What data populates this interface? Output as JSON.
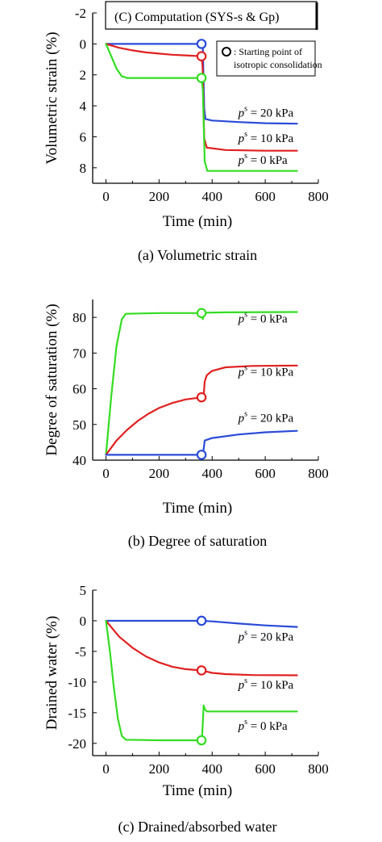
{
  "chart_data": [
    {
      "type": "line",
      "title": "(C) Computation (SYS-s & Gp)",
      "caption": "(a) Volumetric strain",
      "xlabel": "Time (min)",
      "ylabel": "Volumetric strain (%)",
      "xlim": [
        -50,
        800
      ],
      "ylim": [
        -2,
        9
      ],
      "y_inverted": true,
      "x_ticks": [
        "0",
        "200",
        "400",
        "600",
        "800"
      ],
      "x_tick_values": [
        0,
        200,
        400,
        600,
        800
      ],
      "y_ticks": [
        "-2",
        "0",
        "2",
        "4",
        "6",
        "8"
      ],
      "y_tick_values": [
        -2,
        0,
        2,
        4,
        6,
        8
      ],
      "legend": {
        "marker_label_1": ": Starting point of",
        "marker_label_2": "isotropic consolidation",
        "placement": "top-right"
      },
      "series": [
        {
          "label_prefix": "p",
          "label_sup": "s",
          "label_suffix": " = 20 kPa",
          "color": "#2a4bd7",
          "points": [
            [
              0,
              0
            ],
            [
              100,
              0
            ],
            [
              200,
              0
            ],
            [
              300,
              0
            ],
            [
              360,
              0
            ],
            [
              365,
              0.3
            ],
            [
              370,
              4.2
            ],
            [
              375,
              4.85
            ],
            [
              400,
              4.95
            ],
            [
              500,
              5.05
            ],
            [
              600,
              5.12
            ],
            [
              720,
              5.15
            ]
          ],
          "marker": [
            360,
            0
          ],
          "label_anchor": [
            565,
            4.7
          ]
        },
        {
          "label_prefix": "p",
          "label_sup": "s",
          "label_suffix": " = 10 kPa",
          "color": "#e02020",
          "points": [
            [
              0,
              0
            ],
            [
              50,
              0.25
            ],
            [
              100,
              0.42
            ],
            [
              150,
              0.55
            ],
            [
              200,
              0.63
            ],
            [
              250,
              0.7
            ],
            [
              300,
              0.74
            ],
            [
              360,
              0.8
            ],
            [
              364,
              1.5
            ],
            [
              370,
              6.1
            ],
            [
              380,
              6.7
            ],
            [
              450,
              6.85
            ],
            [
              600,
              6.9
            ],
            [
              720,
              6.9
            ]
          ],
          "marker": [
            360,
            0.8
          ],
          "label_anchor": [
            565,
            6.35
          ]
        },
        {
          "label_prefix": "p",
          "label_sup": "s",
          "label_suffix": " = 0 kPa",
          "color": "#33dd22",
          "points": [
            [
              0,
              0
            ],
            [
              20,
              0.8
            ],
            [
              40,
              1.6
            ],
            [
              60,
              2.1
            ],
            [
              80,
              2.2
            ],
            [
              200,
              2.2
            ],
            [
              360,
              2.2
            ],
            [
              365,
              3
            ],
            [
              372,
              7.6
            ],
            [
              382,
              8.2
            ],
            [
              450,
              8.2
            ],
            [
              720,
              8.2
            ]
          ],
          "marker": [
            360,
            2.2
          ],
          "label_anchor": [
            565,
            7.75
          ]
        }
      ]
    },
    {
      "type": "line",
      "caption": "(b) Degree of saturation",
      "xlabel": "Time (min)",
      "ylabel": "Degree of saturation (%)",
      "xlim": [
        -50,
        800
      ],
      "ylim": [
        40,
        85
      ],
      "y_inverted": false,
      "x_ticks": [
        "0",
        "200",
        "400",
        "600",
        "800"
      ],
      "x_tick_values": [
        0,
        200,
        400,
        600,
        800
      ],
      "y_ticks": [
        "40",
        "50",
        "60",
        "70",
        "80"
      ],
      "y_tick_values": [
        40,
        50,
        60,
        70,
        80
      ],
      "series": [
        {
          "label_prefix": "p",
          "label_sup": "s",
          "label_suffix": " = 0 kPa",
          "color": "#33dd22",
          "points": [
            [
              0,
              41.5
            ],
            [
              20,
              58
            ],
            [
              40,
              72
            ],
            [
              60,
              79.5
            ],
            [
              75,
              81
            ],
            [
              200,
              81.2
            ],
            [
              355,
              81.2
            ],
            [
              362,
              81
            ],
            [
              365,
              79.5
            ],
            [
              368,
              81.3
            ],
            [
              450,
              81.4
            ],
            [
              720,
              81.5
            ]
          ],
          "marker": [
            360,
            81.2
          ],
          "label_anchor": [
            565,
            78.5
          ]
        },
        {
          "label_prefix": "p",
          "label_sup": "s",
          "label_suffix": " = 10 kPa",
          "color": "#e02020",
          "points": [
            [
              0,
              41.5
            ],
            [
              40,
              45.5
            ],
            [
              80,
              48.5
            ],
            [
              120,
              51
            ],
            [
              160,
              53
            ],
            [
              200,
              54.6
            ],
            [
              250,
              56
            ],
            [
              300,
              57
            ],
            [
              360,
              57.6
            ],
            [
              368,
              58
            ],
            [
              372,
              62
            ],
            [
              380,
              63.8
            ],
            [
              400,
              65
            ],
            [
              450,
              66
            ],
            [
              550,
              66.4
            ],
            [
              720,
              66.5
            ]
          ],
          "marker": [
            360,
            57.6
          ],
          "label_anchor": [
            565,
            63.6
          ]
        },
        {
          "label_prefix": "p",
          "label_sup": "s",
          "label_suffix": " = 20 kPa",
          "color": "#2a4bd7",
          "points": [
            [
              0,
              41.5
            ],
            [
              100,
              41.5
            ],
            [
              200,
              41.5
            ],
            [
              360,
              41.5
            ],
            [
              368,
              43
            ],
            [
              372,
              45.5
            ],
            [
              400,
              46.2
            ],
            [
              500,
              47.2
            ],
            [
              600,
              47.8
            ],
            [
              720,
              48.2
            ]
          ],
          "marker": [
            360,
            41.5
          ],
          "label_anchor": [
            565,
            50.7
          ]
        }
      ]
    },
    {
      "type": "line",
      "caption": "(c) Drained/absorbed water",
      "xlabel": "Time (min)",
      "ylabel": "Drained water (%)",
      "xlim": [
        -50,
        800
      ],
      "ylim": [
        -22,
        5
      ],
      "y_inverted": false,
      "x_ticks": [
        "0",
        "200",
        "400",
        "600",
        "800"
      ],
      "x_tick_values": [
        0,
        200,
        400,
        600,
        800
      ],
      "y_ticks": [
        "5",
        "0",
        "-5",
        "-10",
        "-15",
        "-20"
      ],
      "y_tick_values": [
        5,
        0,
        -5,
        -10,
        -15,
        -20
      ],
      "series": [
        {
          "label_prefix": "p",
          "label_sup": "s",
          "label_suffix": " = 20 kPa",
          "color": "#2a4bd7",
          "points": [
            [
              0,
              0
            ],
            [
              200,
              0
            ],
            [
              360,
              0
            ],
            [
              400,
              -0.1
            ],
            [
              500,
              -0.45
            ],
            [
              600,
              -0.75
            ],
            [
              720,
              -1.0
            ]
          ],
          "marker": [
            360,
            0
          ],
          "label_anchor": [
            565,
            -3.2
          ]
        },
        {
          "label_prefix": "p",
          "label_sup": "s",
          "label_suffix": " = 10 kPa",
          "color": "#e02020",
          "points": [
            [
              0,
              0
            ],
            [
              50,
              -2.6
            ],
            [
              100,
              -4.4
            ],
            [
              150,
              -5.8
            ],
            [
              200,
              -6.8
            ],
            [
              250,
              -7.5
            ],
            [
              300,
              -7.9
            ],
            [
              360,
              -8.1
            ],
            [
              400,
              -8.5
            ],
            [
              450,
              -8.7
            ],
            [
              550,
              -8.85
            ],
            [
              720,
              -8.9
            ]
          ],
          "marker": [
            360,
            -8.1
          ],
          "label_anchor": [
            565,
            -11.1
          ]
        },
        {
          "label_prefix": "p",
          "label_sup": "s",
          "label_suffix": " = 0 kPa",
          "color": "#33dd22",
          "points": [
            [
              0,
              0
            ],
            [
              15,
              -5
            ],
            [
              30,
              -11
            ],
            [
              45,
              -16
            ],
            [
              60,
              -18.8
            ],
            [
              75,
              -19.4
            ],
            [
              200,
              -19.5
            ],
            [
              355,
              -19.5
            ],
            [
              362,
              -19
            ],
            [
              366,
              -15.8
            ],
            [
              368,
              -13.8
            ],
            [
              372,
              -14.4
            ],
            [
              380,
              -14.8
            ],
            [
              720,
              -14.8
            ]
          ],
          "marker": [
            360,
            -19.5
          ],
          "label_anchor": [
            565,
            -17.8
          ]
        }
      ]
    }
  ]
}
